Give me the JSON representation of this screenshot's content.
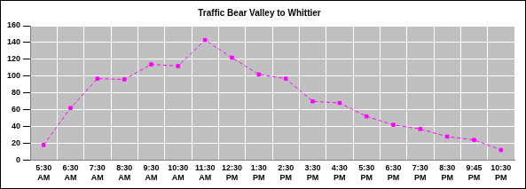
{
  "chart_data": {
    "type": "line",
    "title": "Traffic Bear Valley to Whittier",
    "categories": [
      "5:30 AM",
      "6:30 AM",
      "7:30 AM",
      "8:30 AM",
      "9:30 AM",
      "10:30 AM",
      "11:30 AM",
      "12:30 PM",
      "1:30 PM",
      "2:30 PM",
      "3:30 PM",
      "4:30 PM",
      "5:30 PM",
      "6:30 PM",
      "7:30 PM",
      "8:30 PM",
      "9:45 PM",
      "10:30 PM"
    ],
    "values": [
      18,
      62,
      97,
      96,
      114,
      112,
      143,
      122,
      102,
      97,
      70,
      68,
      52,
      42,
      37,
      28,
      24,
      12
    ],
    "color": "#ff00ff",
    "ylim": [
      0,
      160
    ],
    "yticks": [
      0,
      20,
      40,
      60,
      80,
      100,
      120,
      140,
      160
    ],
    "grid": true,
    "marker": "square",
    "line_style": "dashed"
  }
}
